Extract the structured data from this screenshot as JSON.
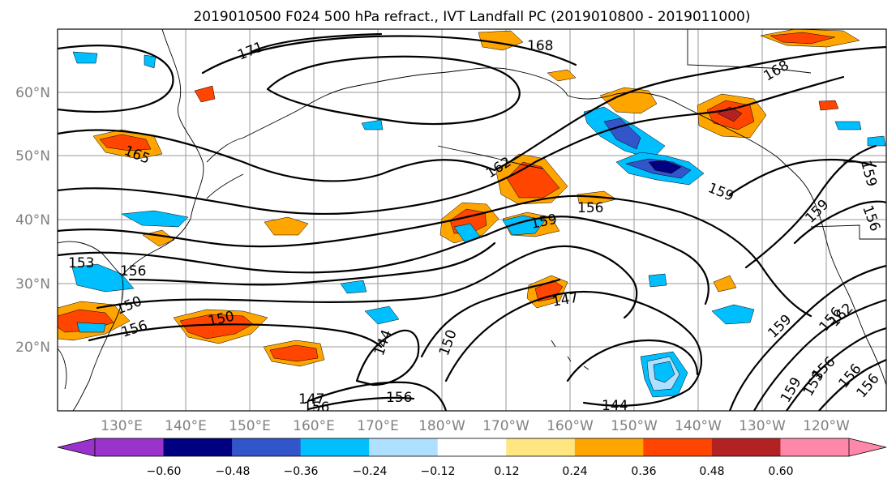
{
  "title": "2019010500 F024 500 hPa refract., IVT Landfall PC (2019010800 - 2019011000)",
  "lat_ticks": [
    "60°N",
    "50°N",
    "40°N",
    "30°N",
    "20°N"
  ],
  "lon_ticks": [
    "130°E",
    "140°E",
    "150°E",
    "160°E",
    "170°E",
    "180°W",
    "170°W",
    "160°W",
    "150°W",
    "140°W",
    "130°W",
    "120°W"
  ],
  "colorbar": {
    "tick_labels": [
      "−0.60",
      "−0.48",
      "−0.36",
      "−0.24",
      "−0.12",
      "0.12",
      "0.24",
      "0.36",
      "0.48",
      "0.60"
    ],
    "colors": [
      "#9933cc",
      "#000080",
      "#3355cc",
      "#00bfff",
      "#b0e0ff",
      "#ffffff",
      "#ffe680",
      "#ffa500",
      "#ff4500",
      "#b22222",
      "#ff88aa"
    ]
  },
  "contour_labels": [
    "171",
    "168",
    "168",
    "165",
    "162",
    "159",
    "159",
    "156",
    "159",
    "159",
    "156",
    "153",
    "156",
    "150",
    "156",
    "150",
    "147",
    "144",
    "150",
    "147",
    "156",
    "156",
    "144",
    "159",
    "162",
    "156",
    "153",
    "159",
    "156",
    "156",
    "156"
  ]
}
